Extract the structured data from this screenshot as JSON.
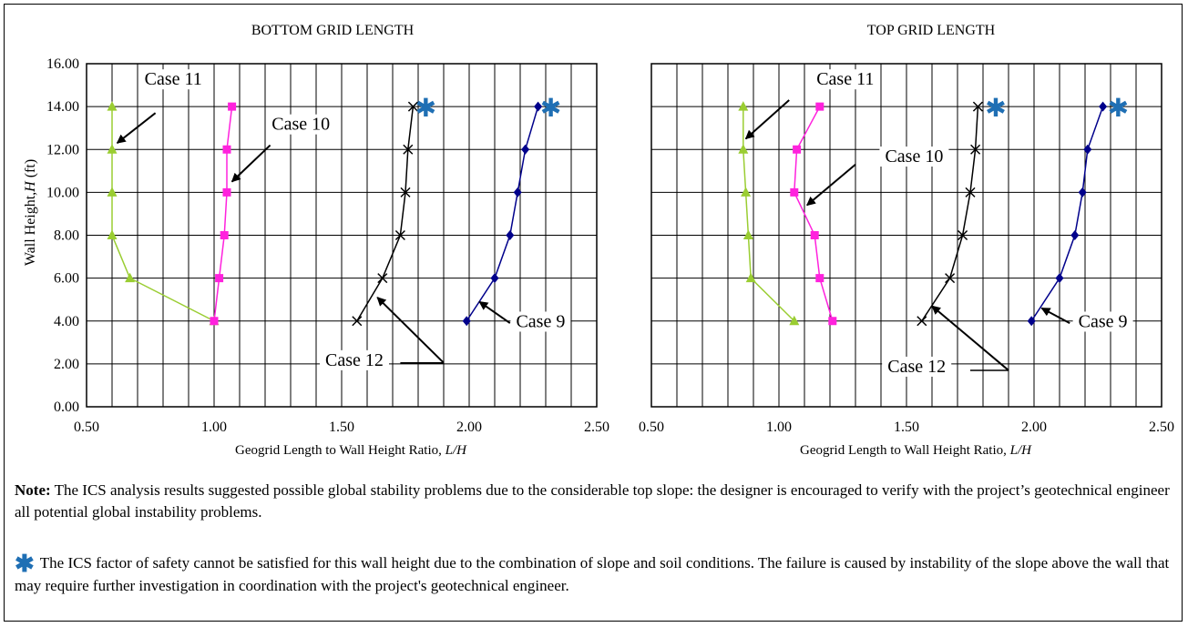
{
  "chart_data": [
    {
      "type": "line",
      "title": "BOTTOM GRID LENGTH",
      "xlabel": "Geogrid Length to Wall Height Ratio, L/H",
      "ylabel": "Wall Height,H (ft)",
      "xlim": [
        0.5,
        2.5
      ],
      "ylim": [
        0,
        16
      ],
      "x_ticks": [
        "0.50",
        "1.00",
        "1.50",
        "2.00",
        "2.50"
      ],
      "y_ticks": [
        "0.00",
        "2.00",
        "4.00",
        "6.00",
        "8.00",
        "10.00",
        "12.00",
        "14.00",
        "16.00"
      ],
      "grid": true,
      "series": [
        {
          "label": "Case 11",
          "color": "#9acd32",
          "marker": "triangle",
          "points": [
            [
              1.0,
              4
            ],
            [
              0.67,
              6
            ],
            [
              0.6,
              8
            ],
            [
              0.6,
              10
            ],
            [
              0.6,
              12
            ],
            [
              0.6,
              14
            ]
          ]
        },
        {
          "label": "Case 10",
          "color": "#ff22dd",
          "marker": "square",
          "points": [
            [
              1.0,
              4
            ],
            [
              1.02,
              6
            ],
            [
              1.04,
              8
            ],
            [
              1.05,
              10
            ],
            [
              1.05,
              12
            ],
            [
              1.07,
              14
            ]
          ]
        },
        {
          "label": "Case 12",
          "color": "#000000",
          "marker": "x",
          "points": [
            [
              1.56,
              4
            ],
            [
              1.66,
              6
            ],
            [
              1.73,
              8
            ],
            [
              1.75,
              10
            ],
            [
              1.76,
              12
            ],
            [
              1.78,
              14
            ]
          ]
        },
        {
          "label": "Case 9",
          "color": "#00008b",
          "marker": "diamond",
          "points": [
            [
              1.99,
              4
            ],
            [
              2.1,
              6
            ],
            [
              2.16,
              8
            ],
            [
              2.19,
              10
            ],
            [
              2.22,
              12
            ],
            [
              2.27,
              14
            ]
          ]
        }
      ],
      "annotations": [
        {
          "text": "Case 11",
          "x": 0.84,
          "y": 15.1,
          "arrow_from": [
            0.77,
            13.7
          ],
          "arrow_to": [
            0.62,
            12.3
          ]
        },
        {
          "text": "Case 10",
          "x": 1.34,
          "y": 13.0,
          "arrow_from": [
            1.22,
            12.2
          ],
          "arrow_to": [
            1.07,
            10.5
          ]
        },
        {
          "text": "Case 12",
          "x": 1.55,
          "y": 2.0,
          "arrow_from": [
            1.9,
            2.05
          ],
          "arrow_to": [
            1.64,
            5.1
          ],
          "elbow": [
            1.73,
            2.05
          ]
        },
        {
          "text": "Case 9",
          "x": 2.28,
          "y": 3.8,
          "arrow_from": [
            2.16,
            3.9
          ],
          "arrow_to": [
            2.04,
            4.9
          ]
        },
        {
          "text": "✱",
          "x": 1.83,
          "y": 14.0,
          "kind": "star"
        },
        {
          "text": "✱",
          "x": 2.32,
          "y": 14.0,
          "kind": "star"
        }
      ]
    },
    {
      "type": "line",
      "title": "TOP GRID LENGTH",
      "xlabel": "Geogrid Length to Wall Height Ratio, L/H",
      "ylabel": "",
      "xlim": [
        0.5,
        2.5
      ],
      "ylim": [
        0,
        16
      ],
      "x_ticks": [
        "0.50",
        "1.00",
        "1.50",
        "2.00",
        "2.50"
      ],
      "grid": true,
      "series": [
        {
          "label": "Case 11",
          "color": "#9acd32",
          "marker": "triangle",
          "points": [
            [
              1.06,
              4
            ],
            [
              0.89,
              6
            ],
            [
              0.88,
              8
            ],
            [
              0.87,
              10
            ],
            [
              0.86,
              12
            ],
            [
              0.86,
              14
            ]
          ]
        },
        {
          "label": "Case 10",
          "color": "#ff22dd",
          "marker": "square",
          "points": [
            [
              1.21,
              4
            ],
            [
              1.16,
              6
            ],
            [
              1.14,
              8
            ],
            [
              1.06,
              10
            ],
            [
              1.07,
              12
            ],
            [
              1.16,
              14
            ]
          ]
        },
        {
          "label": "Case 12",
          "color": "#000000",
          "marker": "x",
          "points": [
            [
              1.56,
              4
            ],
            [
              1.67,
              6
            ],
            [
              1.72,
              8
            ],
            [
              1.75,
              10
            ],
            [
              1.77,
              12
            ],
            [
              1.78,
              14
            ]
          ]
        },
        {
          "label": "Case 9",
          "color": "#00008b",
          "marker": "diamond",
          "points": [
            [
              1.99,
              4
            ],
            [
              2.1,
              6
            ],
            [
              2.16,
              8
            ],
            [
              2.19,
              10
            ],
            [
              2.21,
              12
            ],
            [
              2.27,
              14
            ]
          ]
        }
      ],
      "annotations": [
        {
          "text": "Case 11",
          "x": 1.26,
          "y": 15.1,
          "arrow_from": [
            1.04,
            14.3
          ],
          "arrow_to": [
            0.87,
            12.5
          ]
        },
        {
          "text": "Case 10",
          "x": 1.53,
          "y": 11.5,
          "arrow_from": [
            1.3,
            11.3
          ],
          "arrow_to": [
            1.11,
            9.4
          ]
        },
        {
          "text": "Case 12",
          "x": 1.54,
          "y": 1.7,
          "arrow_from": [
            1.9,
            1.7
          ],
          "arrow_to": [
            1.6,
            4.7
          ],
          "elbow": [
            1.75,
            1.7
          ]
        },
        {
          "text": "Case 9",
          "x": 2.27,
          "y": 3.8,
          "arrow_from": [
            2.14,
            3.9
          ],
          "arrow_to": [
            2.03,
            4.6
          ]
        },
        {
          "text": "✱",
          "x": 1.85,
          "y": 14.0,
          "kind": "star"
        },
        {
          "text": "✱",
          "x": 2.33,
          "y": 14.0,
          "kind": "star"
        }
      ]
    }
  ],
  "notes": {
    "note_label": "Note:",
    "note_text": " The ICS analysis results suggested possible global stability problems due to the considerable top slope: the designer is encouraged to verify with the project’s geotechnical engineer all potential global instability problems.",
    "star_symbol": "✱",
    "star_text": "The ICS factor of safety cannot be satisfied for this wall height due to the combination of slope and soil conditions. The failure is caused by instability of the slope above the wall that may require further investigation in coordination with the project's geotechnical engineer."
  },
  "colors": {
    "star": "#1f6fb4",
    "grid": "#000000"
  }
}
